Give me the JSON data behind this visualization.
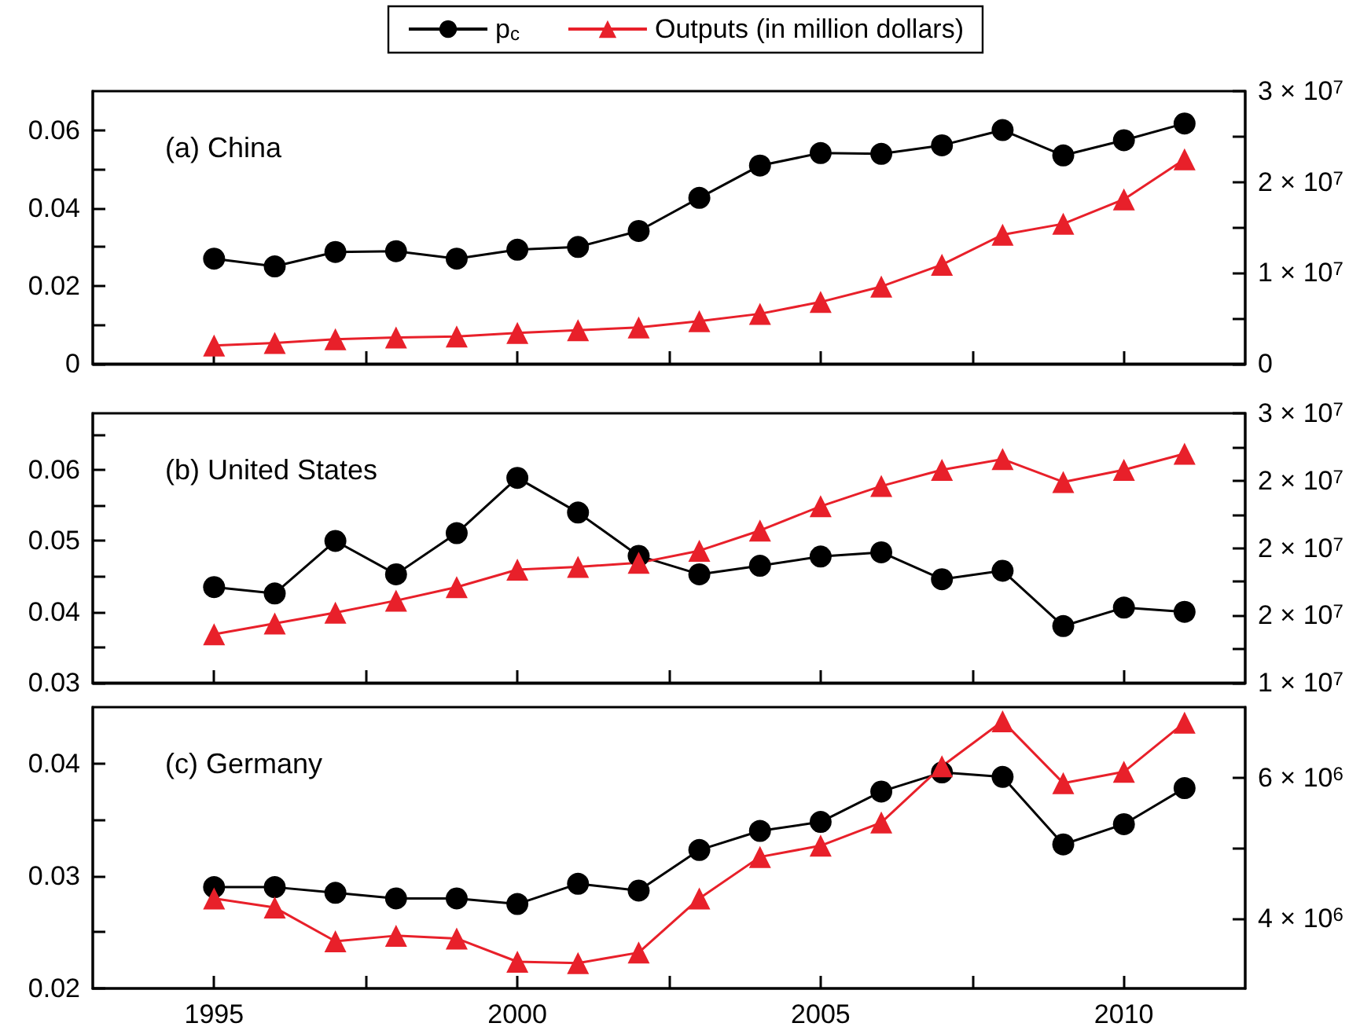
{
  "chart_data": [
    {
      "type": "line",
      "title": "(a) China",
      "legend": "top",
      "tick_labels": "y",
      "x": [
        1995,
        1996,
        1997,
        1998,
        1999,
        2000,
        2001,
        2002,
        2003,
        2004,
        2005,
        2006,
        2007,
        2008,
        2009,
        2010,
        2011
      ],
      "xlim": [
        1993,
        2012
      ],
      "xticks": [
        1995,
        {
          "value": 1997.5,
          "label": null
        },
        2000,
        {
          "value": 2002.5,
          "label": null
        },
        2005,
        {
          "value": 2007.5,
          "label": null
        },
        2010
      ],
      "ylim": [
        0,
        0.07
      ],
      "yticks": [
        0,
        {
          "value": 0.01,
          "label": null
        },
        0.02,
        {
          "value": 0.03,
          "label": null
        },
        0.04,
        {
          "value": 0.05,
          "label": null
        },
        0.06
      ],
      "y2lim": [
        0,
        30000000
      ],
      "y2ticks": [
        {
          "value": 0,
          "label": "0"
        },
        {
          "value": 5000000,
          "label": null
        },
        {
          "value": 10000000,
          "label": "1 × 10$^{7}$"
        },
        {
          "value": 15000000,
          "label": null
        },
        {
          "value": 20000000,
          "label": "2 × 10$^{7}$"
        },
        {
          "value": 25000000,
          "label": null
        },
        {
          "value": 30000000,
          "label": "3 × 10$^{7}$"
        }
      ],
      "series": [
        {
          "name": "p$_{c}$",
          "color": "#000000",
          "marker": "circle",
          "values": [
            0.027,
            0.025,
            0.0287,
            0.0289,
            0.027,
            0.0293,
            0.03,
            0.0341,
            0.0426,
            0.0509,
            0.0541,
            0.0539,
            0.0561,
            0.06,
            0.0535,
            0.0574,
            0.0617
          ]
        },
        {
          "name": "Outputs (in million dollars)",
          "color": "#e8202a",
          "marker": "triangle",
          "axis": "y2",
          "values": [
            2000000,
            2300000,
            2700000,
            2900000,
            3000000,
            3400000,
            3700000,
            4000000,
            4700000,
            5500000,
            6800000,
            8500000,
            10900000,
            14200000,
            15400000,
            18100000,
            22500000
          ]
        }
      ]
    },
    {
      "type": "line",
      "title": "(b) United States",
      "tick_labels": "y",
      "x": [
        1995,
        1996,
        1997,
        1998,
        1999,
        2000,
        2001,
        2002,
        2003,
        2004,
        2005,
        2006,
        2007,
        2008,
        2009,
        2010,
        2011
      ],
      "xlim": [
        1993,
        2012
      ],
      "xticks": [
        1995,
        {
          "value": 1997.5,
          "label": null
        },
        2000,
        {
          "value": 2002.5,
          "label": null
        },
        2005,
        {
          "value": 2007.5,
          "label": null
        },
        2010
      ],
      "ylim": [
        0.03,
        0.068
      ],
      "yticks": [
        0.03,
        {
          "value": 0.035,
          "label": null
        },
        0.04,
        {
          "value": 0.045,
          "label": null
        },
        0.05,
        {
          "value": 0.055,
          "label": null
        },
        0.06,
        {
          "value": 0.065,
          "label": null
        }
      ],
      "y2lim": [
        10000000,
        30000000
      ],
      "y2ticks": [
        {
          "value": 10000000,
          "label": "1 × 10$^{7}$"
        },
        {
          "value": 12500000,
          "label": null
        },
        {
          "value": 15000000,
          "label": "2 × 10$^{7}$"
        },
        {
          "value": 17500000,
          "label": null
        },
        {
          "value": 20000000,
          "label": "2 × 10$^{7}$"
        },
        {
          "value": 22500000,
          "label": null
        },
        {
          "value": 25000000,
          "label": "2 × 10$^{7}$"
        },
        {
          "value": 27500000,
          "label": null
        },
        {
          "value": 30000000,
          "label": "3 × 10$^{7}$"
        }
      ],
      "series": [
        {
          "color": "#000000",
          "marker": "circle",
          "values": [
            0.0435,
            0.0426,
            0.05,
            0.0453,
            0.0511,
            0.0589,
            0.054,
            0.0479,
            0.0453,
            0.0465,
            0.0478,
            0.0484,
            0.0446,
            0.0458,
            0.038,
            0.0406,
            0.04
          ]
        },
        {
          "color": "#e8202a",
          "marker": "triangle",
          "axis": "y2",
          "values": [
            13600000,
            14400000,
            15200000,
            16100000,
            17100000,
            18400000,
            18600000,
            18900000,
            19800000,
            21300000,
            23100000,
            24600000,
            25800000,
            26600000,
            24900000,
            25800000,
            27000000
          ]
        }
      ]
    },
    {
      "type": "line",
      "title": "(c) Germany",
      "x": [
        1995,
        1996,
        1997,
        1998,
        1999,
        2000,
        2001,
        2002,
        2003,
        2004,
        2005,
        2006,
        2007,
        2008,
        2009,
        2010,
        2011
      ],
      "xlim": [
        1993,
        2012
      ],
      "xticks": [
        1995,
        {
          "value": 1997.5,
          "label": null
        },
        2000,
        {
          "value": 2002.5,
          "label": null
        },
        2005,
        {
          "value": 2007.5,
          "label": null
        },
        2010
      ],
      "ylim": [
        0.02,
        0.045
      ],
      "yticks": [
        0.02,
        {
          "value": 0.025,
          "label": null
        },
        0.03,
        {
          "value": 0.035,
          "label": null
        },
        0.04
      ],
      "y2lim": [
        3000000,
        7000000
      ],
      "y2ticks": [
        {
          "value": 4000000,
          "label": "4 × 10$^{6}$"
        },
        {
          "value": 5000000,
          "label": null
        },
        {
          "value": 6000000,
          "label": "6 × 10$^{6}$"
        }
      ],
      "series": [
        {
          "color": "#000000",
          "marker": "circle",
          "values": [
            0.029,
            0.029,
            0.0285,
            0.028,
            0.028,
            0.0275,
            0.0293,
            0.0287,
            0.0323,
            0.034,
            0.0348,
            0.0375,
            0.0392,
            0.0388,
            0.0328,
            0.0346,
            0.0378
          ]
        },
        {
          "color": "#e8202a",
          "marker": "triangle",
          "axis": "y2",
          "values": [
            4280000,
            4150000,
            3670000,
            3750000,
            3710000,
            3380000,
            3360000,
            3510000,
            4280000,
            4870000,
            5030000,
            5360000,
            6160000,
            6800000,
            5920000,
            6080000,
            6780000
          ]
        }
      ]
    }
  ]
}
